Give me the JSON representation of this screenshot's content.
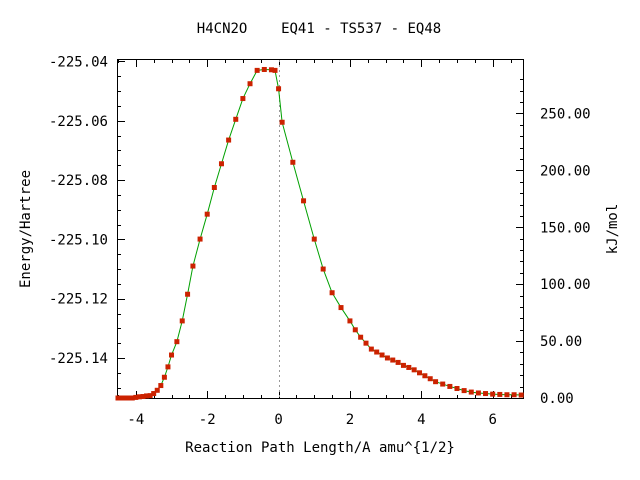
{
  "chart_data": {
    "type": "line",
    "title": "H4CN2O    EQ41 - TS537 - EQ48",
    "xlabel": "Reaction Path Length/A amu^{1/2}",
    "ylabel": "Energy/Hartree",
    "y2label": "kJ/mol",
    "xlim": [
      -4.5,
      6.85
    ],
    "ylim": [
      -225.1535,
      -225.0395
    ],
    "y2lim": [
      0,
      297.0
    ],
    "x_ticks": [
      -4,
      -2,
      0,
      2,
      4,
      6
    ],
    "y_ticks": [
      -225.04,
      -225.06,
      -225.08,
      -225.1,
      -225.12,
      -225.14
    ],
    "y_tick_labels": [
      "-225.04",
      "-225.06",
      "-225.08",
      "-225.10",
      "-225.12",
      "-225.14"
    ],
    "y2_ticks": [
      0,
      50,
      100,
      150,
      200,
      250
    ],
    "y2_tick_labels": [
      "0.00",
      "50.00",
      "100.00",
      "150.00",
      "200.00",
      "250.00"
    ],
    "ts_marker_x": 0,
    "grid": false,
    "line_color": "#00a000",
    "marker_color": "#cc2200",
    "series": [
      {
        "x": [
          -4.5,
          -4.4,
          -4.3,
          -4.2,
          -4.1,
          -4.0,
          -3.9,
          -3.8,
          -3.7,
          -3.6,
          -3.5,
          -3.4,
          -3.3,
          -3.2,
          -3.1,
          -3.0,
          -2.85,
          -2.7,
          -2.55,
          -2.4,
          -2.2,
          -2.0,
          -1.8,
          -1.6,
          -1.4,
          -1.2,
          -1.0,
          -0.8,
          -0.6,
          -0.4,
          -0.2,
          -0.1,
          0.0,
          0.1,
          0.4,
          0.7,
          1.0,
          1.25,
          1.5,
          1.75,
          2.0,
          2.15,
          2.3,
          2.45,
          2.6,
          2.75,
          2.9,
          3.05,
          3.2,
          3.35,
          3.5,
          3.65,
          3.8,
          3.95,
          4.1,
          4.25,
          4.4,
          4.6,
          4.8,
          5.0,
          5.2,
          5.4,
          5.6,
          5.8,
          6.0,
          6.2,
          6.4,
          6.6,
          6.8
        ],
        "y": [
          -225.1535,
          -225.1535,
          -225.1535,
          -225.1535,
          -225.1535,
          -225.1533,
          -225.1531,
          -225.153,
          -225.1528,
          -225.1527,
          -225.152,
          -225.1509,
          -225.1493,
          -225.1465,
          -225.143,
          -225.139,
          -225.1345,
          -225.1275,
          -225.1185,
          -225.109,
          -225.0999,
          -225.0915,
          -225.0825,
          -225.0745,
          -225.0665,
          -225.0595,
          -225.0525,
          -225.0475,
          -225.043,
          -225.0427,
          -225.0428,
          -225.043,
          -225.0492,
          -225.0605,
          -225.074,
          -225.087,
          -225.0999,
          -225.11,
          -225.118,
          -225.123,
          -225.1275,
          -225.1305,
          -225.133,
          -225.135,
          -225.137,
          -225.138,
          -225.139,
          -225.14,
          -225.1407,
          -225.1415,
          -225.1425,
          -225.1432,
          -225.144,
          -225.145,
          -225.146,
          -225.147,
          -225.148,
          -225.1488,
          -225.1496,
          -225.1503,
          -225.151,
          -225.1515,
          -225.1518,
          -225.152,
          -225.1522,
          -225.1523,
          -225.1524,
          -225.1524,
          -225.1525
        ]
      }
    ]
  }
}
